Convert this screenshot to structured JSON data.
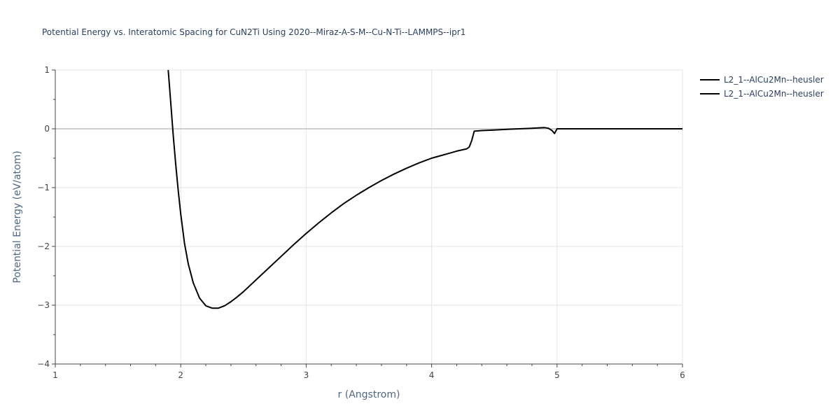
{
  "chart_data": {
    "type": "line",
    "title": "Potential Energy vs. Interatomic Spacing for CuN2Ti Using 2020--Miraz-A-S-M--Cu-N-Ti--LAMMPS--ipr1",
    "xlabel": "r (Angstrom)",
    "ylabel": "Potential Energy (eV/atom)",
    "xlim": [
      1,
      6
    ],
    "ylim": [
      -4,
      1
    ],
    "xticks": [
      1,
      2,
      3,
      4,
      5,
      6
    ],
    "yticks": [
      1,
      0,
      -1,
      -2,
      -3,
      -4
    ],
    "ytick_labels": [
      "1",
      "0",
      "−1",
      "−2",
      "−3",
      "−4"
    ],
    "grid": true,
    "legend_position": "top-right",
    "series": [
      {
        "name": "L2_1--AlCu2Mn--heusler",
        "color": "#000000",
        "x": [
          1.9,
          1.92,
          1.94,
          1.96,
          1.98,
          2.0,
          2.03,
          2.06,
          2.1,
          2.15,
          2.2,
          2.25,
          2.3,
          2.35,
          2.4,
          2.45,
          2.5,
          2.6,
          2.7,
          2.8,
          2.9,
          3.0,
          3.1,
          3.2,
          3.3,
          3.4,
          3.5,
          3.6,
          3.7,
          3.8,
          3.9,
          4.0,
          4.1,
          4.2,
          4.28,
          4.3,
          4.32,
          4.34,
          4.4,
          4.5,
          4.6,
          4.7,
          4.8,
          4.9,
          4.93,
          4.96,
          4.98,
          5.0,
          5.2,
          5.5,
          6.0
        ],
        "y": [
          1.0,
          0.45,
          -0.1,
          -0.6,
          -1.05,
          -1.45,
          -1.95,
          -2.3,
          -2.62,
          -2.88,
          -3.01,
          -3.05,
          -3.05,
          -3.01,
          -2.94,
          -2.86,
          -2.77,
          -2.57,
          -2.37,
          -2.17,
          -1.97,
          -1.78,
          -1.6,
          -1.43,
          -1.27,
          -1.13,
          -1.0,
          -0.88,
          -0.77,
          -0.67,
          -0.58,
          -0.5,
          -0.44,
          -0.38,
          -0.34,
          -0.31,
          -0.2,
          -0.04,
          -0.03,
          -0.02,
          -0.01,
          0.0,
          0.01,
          0.02,
          0.01,
          -0.03,
          -0.08,
          0.0,
          0.0,
          0.0,
          0.0
        ]
      },
      {
        "name": "L2_1--AlCu2Mn--heusler",
        "color": "#000000",
        "x": [],
        "y": []
      }
    ]
  }
}
